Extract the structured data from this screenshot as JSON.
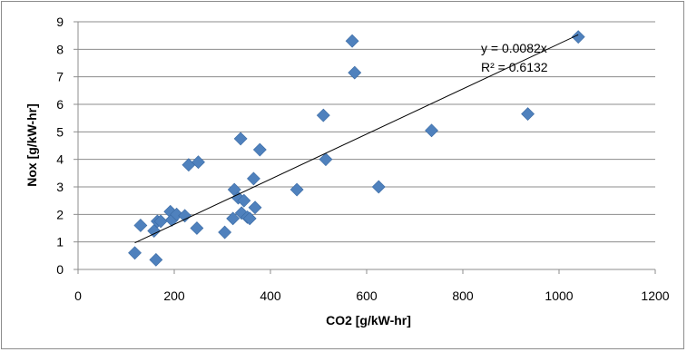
{
  "chart_data": {
    "type": "scatter",
    "xlabel": "CO2 [g/kW-hr]",
    "ylabel": "Nox [g/kW-hr]",
    "xlim": [
      0,
      1200
    ],
    "ylim": [
      0,
      9
    ],
    "xticks": [
      "0",
      "200",
      "400",
      "600",
      "800",
      "1000",
      "1200"
    ],
    "yticks": [
      "0",
      "1",
      "2",
      "3",
      "4",
      "5",
      "6",
      "7",
      "8",
      "9"
    ],
    "grid": "horizontal",
    "legend": "none",
    "marker_color": "#4F81BD",
    "trendline": {
      "type": "linear-through-origin",
      "slope": 0.0082,
      "x_range": [
        118,
        1040
      ],
      "equation": "y = 0.0082x",
      "r_squared": "R² = 0.6132"
    },
    "series": [
      {
        "points": [
          [
            118,
            0.6
          ],
          [
            130,
            1.6
          ],
          [
            158,
            1.4
          ],
          [
            162,
            0.35
          ],
          [
            165,
            1.75
          ],
          [
            172,
            1.75
          ],
          [
            192,
            2.1
          ],
          [
            195,
            1.8
          ],
          [
            205,
            2.0
          ],
          [
            222,
            1.95
          ],
          [
            230,
            3.8
          ],
          [
            247,
            1.5
          ],
          [
            250,
            3.9
          ],
          [
            305,
            1.35
          ],
          [
            322,
            1.85
          ],
          [
            325,
            2.9
          ],
          [
            333,
            2.6
          ],
          [
            338,
            4.75
          ],
          [
            340,
            2.05
          ],
          [
            345,
            2.5
          ],
          [
            352,
            1.9
          ],
          [
            357,
            1.85
          ],
          [
            365,
            3.3
          ],
          [
            368,
            2.25
          ],
          [
            378,
            4.35
          ],
          [
            455,
            2.9
          ],
          [
            510,
            5.6
          ],
          [
            515,
            4.0
          ],
          [
            570,
            8.3
          ],
          [
            575,
            7.15
          ],
          [
            625,
            3.0
          ],
          [
            735,
            5.05
          ],
          [
            935,
            5.65
          ],
          [
            1040,
            8.45
          ]
        ]
      }
    ]
  }
}
